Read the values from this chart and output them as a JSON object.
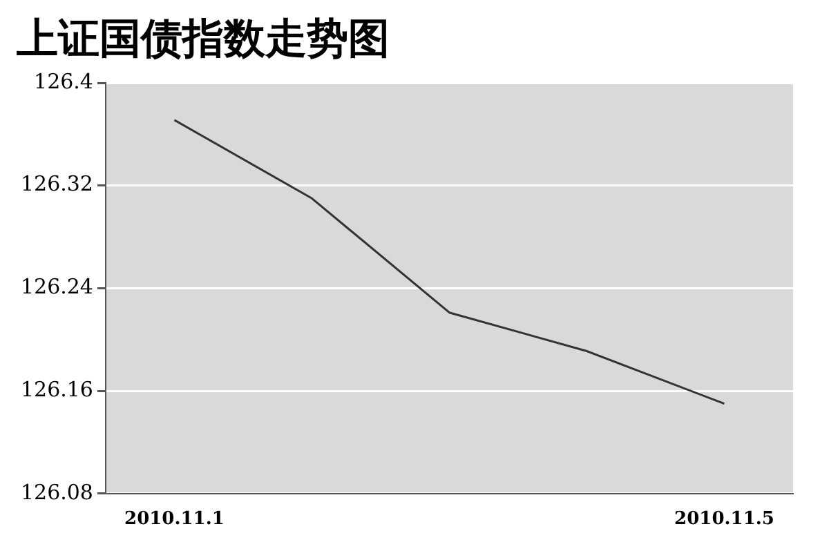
{
  "chart_data": {
    "type": "line",
    "title": "上证国债指数走势图",
    "categories": [
      "2010.11.1",
      null,
      null,
      null,
      "2010.11.5"
    ],
    "series": [
      {
        "color": "#333333",
        "values": [
          126.371,
          126.31,
          126.221,
          126.191,
          126.15
        ]
      }
    ],
    "ylim": [
      126.08,
      126.4
    ],
    "yticks": [
      126.08,
      126.16,
      126.24,
      126.32,
      126.4
    ],
    "grid": "y",
    "legend": false,
    "marker": "none",
    "line_style": "solid"
  }
}
